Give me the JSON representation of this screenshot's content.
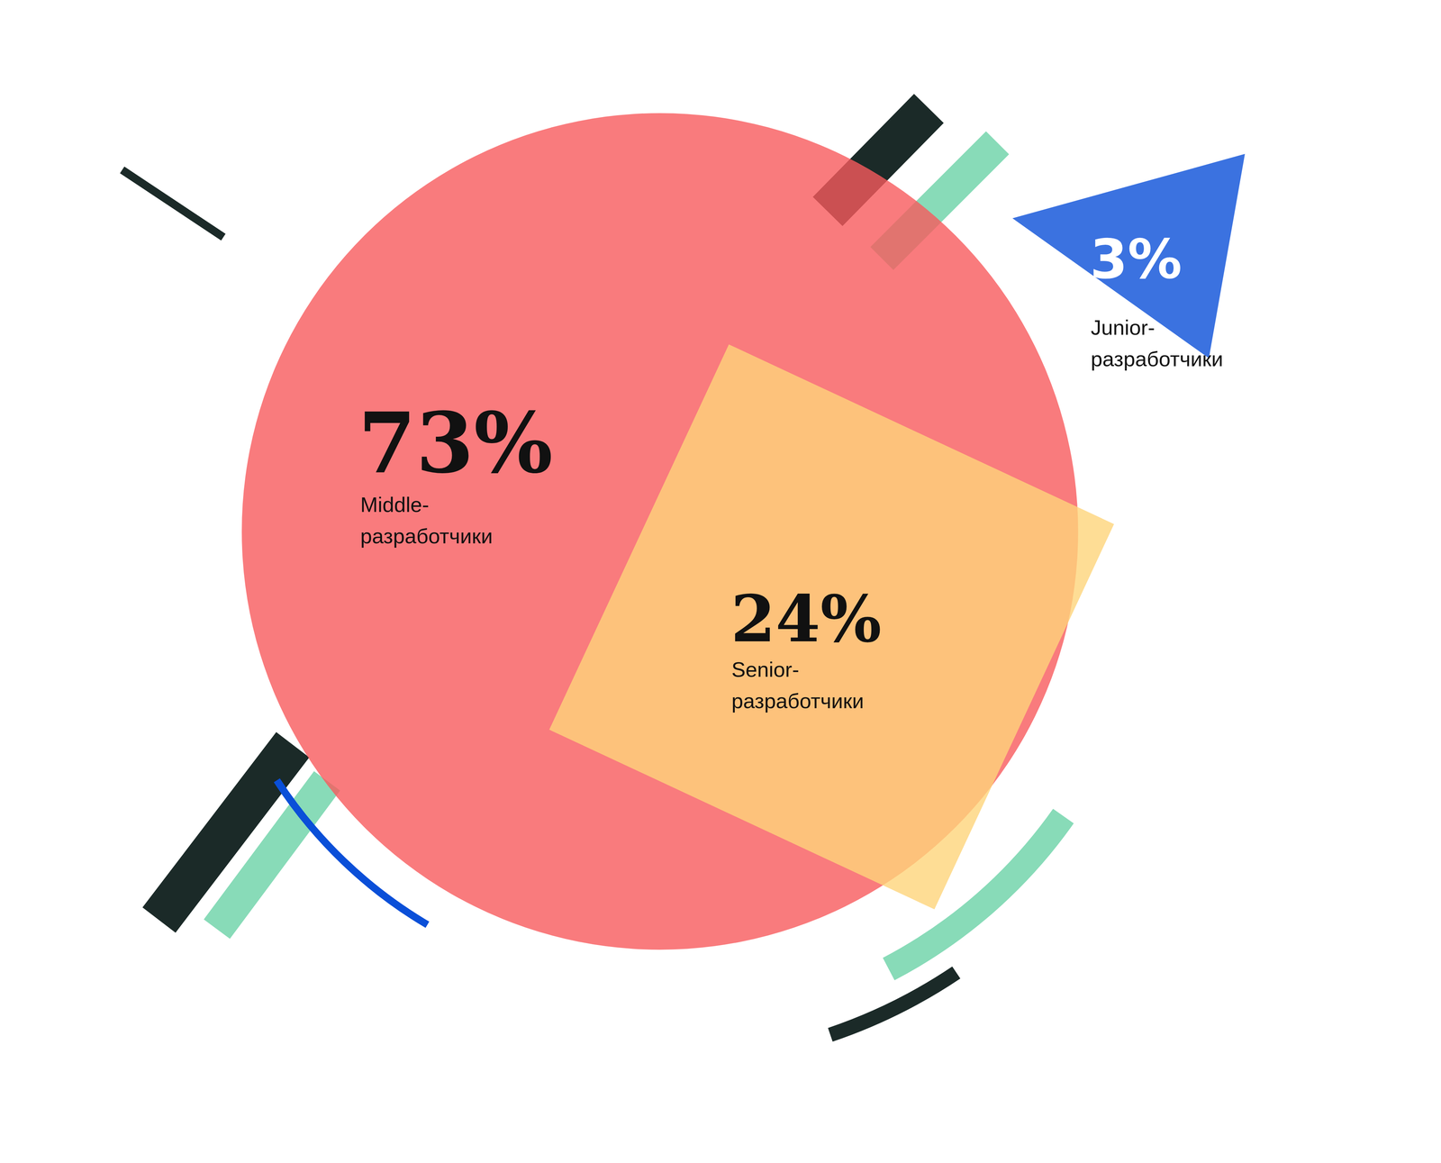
{
  "chart_data": {
    "type": "pie",
    "categories": [
      "Middle-разработчики",
      "Senior-разработчики",
      "Junior-разработчики"
    ],
    "values": [
      73,
      24,
      3
    ],
    "value_labels": [
      "73%",
      "24%",
      "3%"
    ],
    "colors": [
      "#f75a5d",
      "#fed57b",
      "#0a4fd8"
    ],
    "data_labels": true
  }
}
